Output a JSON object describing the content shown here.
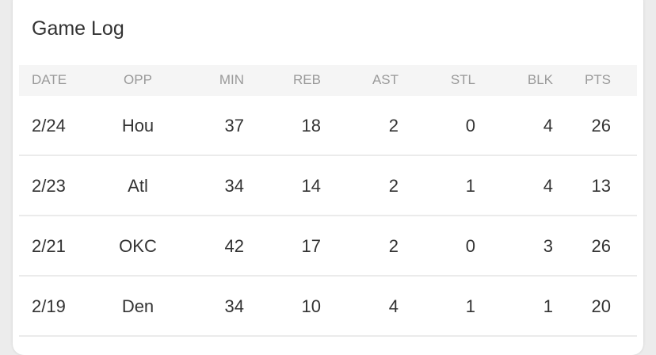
{
  "title": "Game Log",
  "columns": [
    "DATE",
    "OPP",
    "MIN",
    "REB",
    "AST",
    "STL",
    "BLK",
    "PTS"
  ],
  "rows": [
    [
      "2/24",
      "Hou",
      "37",
      "18",
      "2",
      "0",
      "4",
      "26"
    ],
    [
      "2/23",
      "Atl",
      "34",
      "14",
      "2",
      "1",
      "4",
      "13"
    ],
    [
      "2/21",
      "OKC",
      "42",
      "17",
      "2",
      "0",
      "3",
      "26"
    ],
    [
      "2/19",
      "Den",
      "34",
      "10",
      "4",
      "1",
      "1",
      "20"
    ]
  ]
}
